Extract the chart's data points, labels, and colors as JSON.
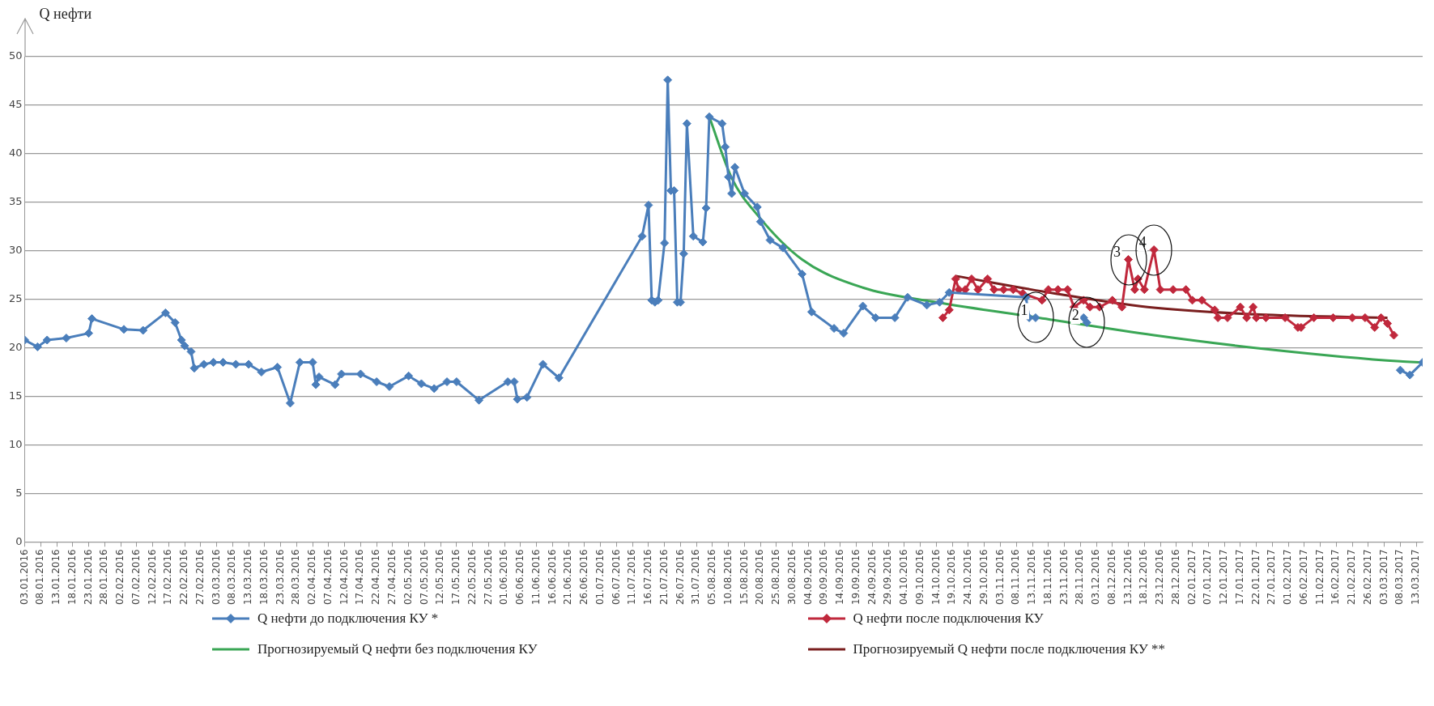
{
  "chart_data": {
    "type": "line",
    "ylabel": "Q нефти",
    "legend": "bottom",
    "grid": "y",
    "ylim": [
      0,
      50
    ],
    "yticks": [
      0,
      5,
      10,
      15,
      20,
      25,
      30,
      35,
      40,
      45,
      50
    ],
    "xlim": [
      "2016-01-03",
      "2017-03-15"
    ],
    "xticks": [
      {
        "value": "2016-01-03",
        "label": "03.01.2016"
      },
      {
        "value": "2016-01-08",
        "label": "08.01.2016"
      },
      {
        "value": "2016-01-13",
        "label": "13.01.2016"
      },
      {
        "value": "2016-01-18",
        "label": "18.01.2016"
      },
      {
        "value": "2016-01-23",
        "label": "23.01.2016"
      },
      {
        "value": "2016-01-28",
        "label": "28.01.2016"
      },
      {
        "value": "2016-02-02",
        "label": "02.02.2016"
      },
      {
        "value": "2016-02-07",
        "label": "07.02.2016"
      },
      {
        "value": "2016-02-12",
        "label": "12.02.2016"
      },
      {
        "value": "2016-02-17",
        "label": "17.02.2016"
      },
      {
        "value": "2016-02-22",
        "label": "22.02.2016"
      },
      {
        "value": "2016-02-27",
        "label": "27.02.2016"
      },
      {
        "value": "2016-03-03",
        "label": "03.03.2016"
      },
      {
        "value": "2016-03-08",
        "label": "08.03.2016"
      },
      {
        "value": "2016-03-13",
        "label": "13.03.2016"
      },
      {
        "value": "2016-03-18",
        "label": "18.03.2016"
      },
      {
        "value": "2016-03-23",
        "label": "23.03.2016"
      },
      {
        "value": "2016-03-28",
        "label": "28.03.2016"
      },
      {
        "value": "2016-04-02",
        "label": "02.04.2016"
      },
      {
        "value": "2016-04-07",
        "label": "07.04.2016"
      },
      {
        "value": "2016-04-12",
        "label": "12.04.2016"
      },
      {
        "value": "2016-04-17",
        "label": "17.04.2016"
      },
      {
        "value": "2016-04-22",
        "label": "22.04.2016"
      },
      {
        "value": "2016-04-27",
        "label": "27.04.2016"
      },
      {
        "value": "2016-05-02",
        "label": "02.05.2016"
      },
      {
        "value": "2016-05-07",
        "label": "07.05.2016"
      },
      {
        "value": "2016-05-12",
        "label": "12.05.2016"
      },
      {
        "value": "2016-05-17",
        "label": "17.05.2016"
      },
      {
        "value": "2016-05-22",
        "label": "22.05.2016"
      },
      {
        "value": "2016-05-27",
        "label": "27.05.2016"
      },
      {
        "value": "2016-06-01",
        "label": "01.06.2016"
      },
      {
        "value": "2016-06-06",
        "label": "06.06.2016"
      },
      {
        "value": "2016-06-11",
        "label": "11.06.2016"
      },
      {
        "value": "2016-06-16",
        "label": "16.06.2016"
      },
      {
        "value": "2016-06-21",
        "label": "21.06.2016"
      },
      {
        "value": "2016-06-26",
        "label": "26.06.2016"
      },
      {
        "value": "2016-07-01",
        "label": "01.07.2016"
      },
      {
        "value": "2016-07-06",
        "label": "06.07.2016"
      },
      {
        "value": "2016-07-11",
        "label": "11.07.2016"
      },
      {
        "value": "2016-07-16",
        "label": "16.07.2016"
      },
      {
        "value": "2016-07-21",
        "label": "21.07.2016"
      },
      {
        "value": "2016-07-26",
        "label": "26.07.2016"
      },
      {
        "value": "2016-07-31",
        "label": "31.07.2016"
      },
      {
        "value": "2016-08-05",
        "label": "05.08.2016"
      },
      {
        "value": "2016-08-10",
        "label": "10.08.2016"
      },
      {
        "value": "2016-08-15",
        "label": "15.08.2016"
      },
      {
        "value": "2016-08-20",
        "label": "20.08.2016"
      },
      {
        "value": "2016-08-25",
        "label": "25.08.2016"
      },
      {
        "value": "2016-08-30",
        "label": "30.08.2016"
      },
      {
        "value": "2016-09-04",
        "label": "04.09.2016"
      },
      {
        "value": "2016-09-09",
        "label": "09.09.2016"
      },
      {
        "value": "2016-09-14",
        "label": "14.09.2016"
      },
      {
        "value": "2016-09-19",
        "label": "19.09.2016"
      },
      {
        "value": "2016-09-24",
        "label": "24.09.2016"
      },
      {
        "value": "2016-09-29",
        "label": "29.09.2016"
      },
      {
        "value": "2016-10-04",
        "label": "04.10.2016"
      },
      {
        "value": "2016-10-09",
        "label": "09.10.2016"
      },
      {
        "value": "2016-10-14",
        "label": "14.10.2016"
      },
      {
        "value": "2016-10-19",
        "label": "19.10.2016"
      },
      {
        "value": "2016-10-24",
        "label": "24.10.2016"
      },
      {
        "value": "2016-10-29",
        "label": "29.10.2016"
      },
      {
        "value": "2016-11-03",
        "label": "03.11.2016"
      },
      {
        "value": "2016-11-08",
        "label": "08.11.2016"
      },
      {
        "value": "2016-11-13",
        "label": "13.11.2016"
      },
      {
        "value": "2016-11-18",
        "label": "18.11.2016"
      },
      {
        "value": "2016-11-23",
        "label": "23.11.2016"
      },
      {
        "value": "2016-11-28",
        "label": "28.11.2016"
      },
      {
        "value": "2016-12-03",
        "label": "03.12.2016"
      },
      {
        "value": "2016-12-08",
        "label": "08.12.2016"
      },
      {
        "value": "2016-12-13",
        "label": "13.12.2016"
      },
      {
        "value": "2016-12-18",
        "label": "18.12.2016"
      },
      {
        "value": "2016-12-23",
        "label": "23.12.2016"
      },
      {
        "value": "2016-12-28",
        "label": "28.12.2016"
      },
      {
        "value": "2017-01-02",
        "label": "02.01.2017"
      },
      {
        "value": "2017-01-07",
        "label": "07.01.2017"
      },
      {
        "value": "2017-01-12",
        "label": "12.01.2017"
      },
      {
        "value": "2017-01-17",
        "label": "17.01.2017"
      },
      {
        "value": "2017-01-22",
        "label": "22.01.2017"
      },
      {
        "value": "2017-01-27",
        "label": "27.01.2017"
      },
      {
        "value": "2017-02-01",
        "label": "01.02.2017"
      },
      {
        "value": "2017-02-06",
        "label": "06.02.2017"
      },
      {
        "value": "2017-02-11",
        "label": "11.02.2017"
      },
      {
        "value": "2017-02-16",
        "label": "16.02.2017"
      },
      {
        "value": "2017-02-21",
        "label": "21.02.2017"
      },
      {
        "value": "2017-02-26",
        "label": "26.02.2017"
      },
      {
        "value": "2017-03-03",
        "label": "03.03.2017"
      },
      {
        "value": "2017-03-08",
        "label": "08.03.2017"
      },
      {
        "value": "2017-03-13",
        "label": "13.03.2017"
      }
    ],
    "series": [
      {
        "name": "Q нефти до подключения КУ *",
        "color": "#4a7ebb",
        "marker": "diamond",
        "x": [
          "2016-01-03",
          "2016-01-07",
          "2016-01-10",
          "2016-01-16",
          "2016-01-23",
          "2016-01-24",
          "2016-02-03",
          "2016-02-09",
          "2016-02-16",
          "2016-02-19",
          "2016-02-21",
          "2016-02-22",
          "2016-02-24",
          "2016-02-25",
          "2016-02-28",
          "2016-03-02",
          "2016-03-05",
          "2016-03-09",
          "2016-03-13",
          "2016-03-17",
          "2016-03-22",
          "2016-03-26",
          "2016-03-29",
          "2016-04-02",
          "2016-04-03",
          "2016-04-04",
          "2016-04-09",
          "2016-04-11",
          "2016-04-17",
          "2016-04-22",
          "2016-04-26",
          "2016-05-02",
          "2016-05-06",
          "2016-05-10",
          "2016-05-14",
          "2016-05-17",
          "2016-05-24",
          "2016-06-02",
          "2016-06-04",
          "2016-06-05",
          "2016-06-08",
          "2016-06-13",
          "2016-06-18",
          "2016-07-14",
          "2016-07-16",
          "2016-07-17",
          "2016-07-18",
          "2016-07-19",
          "2016-07-21",
          "2016-07-22",
          "2016-07-23",
          "2016-07-24",
          "2016-07-25",
          "2016-07-26",
          "2016-07-27",
          "2016-07-28",
          "2016-07-30",
          "2016-08-02",
          "2016-08-03",
          "2016-08-04",
          "2016-08-08",
          "2016-08-09",
          "2016-08-10",
          "2016-08-11",
          "2016-08-12",
          "2016-08-15",
          "2016-08-19",
          "2016-08-20",
          "2016-08-23",
          "2016-08-27",
          "2016-09-02",
          "2016-09-05",
          "2016-09-12",
          "2016-09-15",
          "2016-09-21",
          "2016-09-25",
          "2016-10-01",
          "2016-10-05",
          "2016-10-11",
          "2016-10-15",
          "2016-10-18",
          "2016-11-11",
          "2016-11-12",
          "2016-11-14",
          "2016-11-20",
          "2016-11-29",
          "2016-11-30",
          "2016-12-05",
          "2017-03-08",
          "2017-03-11",
          "2017-03-15"
        ],
        "values": [
          20.8,
          20.1,
          20.8,
          21.0,
          21.5,
          23.0,
          21.9,
          21.8,
          23.6,
          22.6,
          20.8,
          20.2,
          19.6,
          17.9,
          18.3,
          18.5,
          18.5,
          18.3,
          18.3,
          17.5,
          18.0,
          14.3,
          18.5,
          18.5,
          16.2,
          17.0,
          16.2,
          17.3,
          17.3,
          16.5,
          16.0,
          17.1,
          16.3,
          15.8,
          16.5,
          16.5,
          14.6,
          16.5,
          16.5,
          14.7,
          14.9,
          18.3,
          16.9,
          31.5,
          34.7,
          24.9,
          24.7,
          24.9,
          30.8,
          47.6,
          36.2,
          36.2,
          24.7,
          24.7,
          29.7,
          43.1,
          31.5,
          30.9,
          34.4,
          43.8,
          43.1,
          40.7,
          37.6,
          35.9,
          38.6,
          35.9,
          34.5,
          33.0,
          31.1,
          30.3,
          27.6,
          23.7,
          22.0,
          21.5,
          24.3,
          23.1,
          23.1,
          25.2,
          24.4,
          24.7,
          25.7,
          25.2,
          23.1,
          23.1,
          null,
          23.1,
          22.6,
          null,
          17.7,
          17.2,
          18.5
        ]
      },
      {
        "name": "Q нефти после подключения КУ",
        "color": "#c0283c",
        "marker": "diamond",
        "x": [
          "2016-10-16",
          "2016-10-18",
          "2016-10-20",
          "2016-10-21",
          "2016-10-23",
          "2016-10-25",
          "2016-10-27",
          "2016-10-30",
          "2016-11-01",
          "2016-11-04",
          "2016-11-07",
          "2016-11-10",
          "2016-11-16",
          "2016-11-18",
          "2016-11-21",
          "2016-11-24",
          "2016-11-26",
          "2016-11-29",
          "2016-12-01",
          "2016-12-04",
          "2016-12-08",
          "2016-12-11",
          "2016-12-13",
          "2016-12-15",
          "2016-12-16",
          "2016-12-18",
          "2016-12-21",
          "2016-12-23",
          "2016-12-27",
          "2016-12-31",
          "2017-01-02",
          "2017-01-05",
          "2017-01-09",
          "2017-01-10",
          "2017-01-13",
          "2017-01-17",
          "2017-01-19",
          "2017-01-21",
          "2017-01-22",
          "2017-01-25",
          "2017-01-31",
          "2017-02-04",
          "2017-02-05",
          "2017-02-09",
          "2017-02-15",
          "2017-02-21",
          "2017-02-25",
          "2017-02-28",
          "2017-03-02",
          "2017-03-04",
          "2017-03-06"
        ],
        "values": [
          23.1,
          23.9,
          27.1,
          26.0,
          26.0,
          27.1,
          26.0,
          27.1,
          26.0,
          26.0,
          26.0,
          25.6,
          24.9,
          26.0,
          26.0,
          26.0,
          24.2,
          24.9,
          24.2,
          24.2,
          24.9,
          24.2,
          29.1,
          26.0,
          27.1,
          26.0,
          30.1,
          26.0,
          26.0,
          26.0,
          24.9,
          24.9,
          23.9,
          23.1,
          23.1,
          24.2,
          23.1,
          24.2,
          23.1,
          23.1,
          23.1,
          22.1,
          22.1,
          23.1,
          23.1,
          23.1,
          23.1,
          22.1,
          23.1,
          22.5,
          21.3
        ]
      },
      {
        "name": "Прогнозируемый Q нефти без подключения КУ",
        "color": "#3aa655",
        "marker": "none",
        "x": [
          "2016-08-04",
          "2016-08-11",
          "2016-08-19",
          "2016-09-02",
          "2016-09-21",
          "2016-10-14",
          "2016-11-15",
          "2016-12-21",
          "2017-01-27",
          "2017-03-08",
          "2017-03-15"
        ],
        "values": [
          43.8,
          37.5,
          33.7,
          29.1,
          26.2,
          24.7,
          23.1,
          21.3,
          19.8,
          18.6,
          18.5
        ]
      },
      {
        "name": "Прогнозируемый Q нефти после подключения КУ **",
        "color": "#7a1f1f",
        "marker": "none",
        "x": [
          "2016-10-20",
          "2016-11-20",
          "2016-12-19",
          "2017-01-25",
          "2017-03-04"
        ],
        "values": [
          27.4,
          25.6,
          24.2,
          23.4,
          23.1
        ]
      }
    ],
    "annotations": [
      {
        "text": "1",
        "x": "2016-11-14",
        "y": 23.1
      },
      {
        "text": "2",
        "x": "2016-11-30",
        "y": 22.6
      },
      {
        "text": "3",
        "x": "2016-12-13",
        "y": 29.1
      },
      {
        "text": "4",
        "x": "2016-12-21",
        "y": 30.1
      }
    ]
  }
}
